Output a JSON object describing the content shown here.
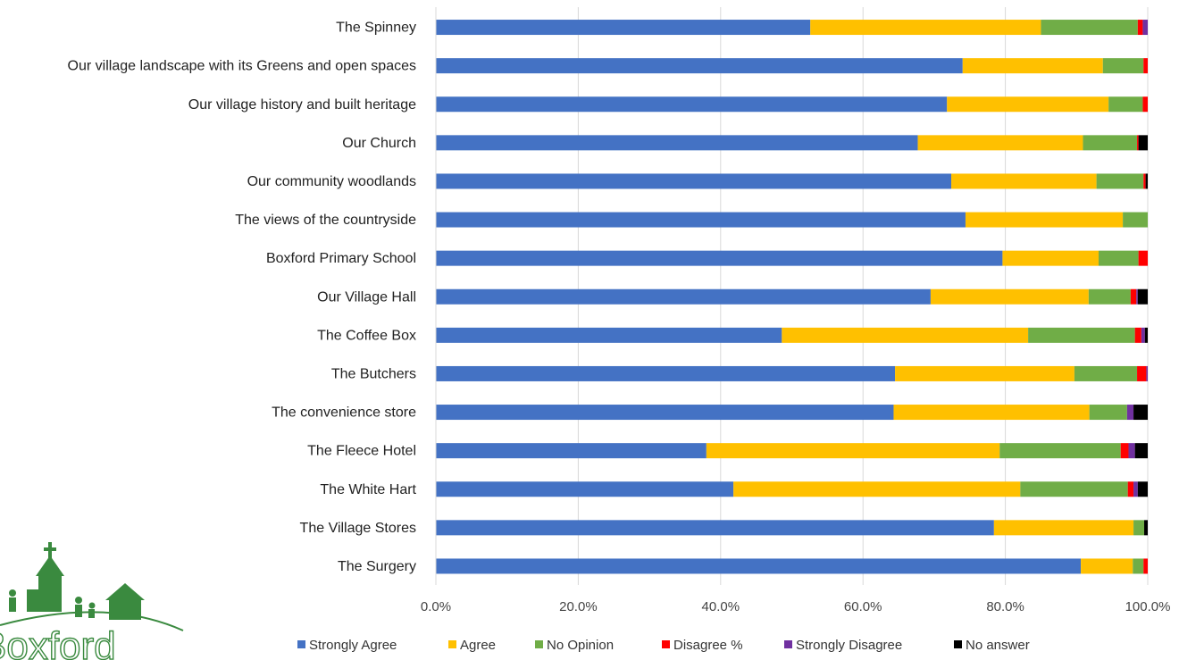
{
  "chart_data": {
    "type": "bar",
    "orientation": "horizontal",
    "stacked": true,
    "title": "",
    "xlabel": "",
    "ylabel": "",
    "xlim": [
      0,
      100
    ],
    "x_ticks": [
      "0.0%",
      "20.0%",
      "40.0%",
      "60.0%",
      "80.0%",
      "100.0%"
    ],
    "grid": true,
    "legend_position": "bottom",
    "categories": [
      "The Spinney",
      "Our village landscape with its Greens and open spaces",
      "Our village history and built heritage",
      "Our Church",
      "Our community woodlands",
      "The views of the countryside",
      "Boxford Primary School",
      "Our Village Hall",
      "The Coffee Box",
      "The Butchers",
      "The convenience store",
      "The Fleece Hotel",
      "The White Hart",
      "The Village Stores",
      "The Surgery"
    ],
    "series": [
      {
        "name": "Strongly Agree",
        "color": "#4472C4",
        "values": [
          52.6,
          74.0,
          71.8,
          67.7,
          72.4,
          74.4,
          79.6,
          69.5,
          48.6,
          64.5,
          64.3,
          38.0,
          41.8,
          78.4,
          90.6
        ]
      },
      {
        "name": "Agree",
        "color": "#FFC000",
        "values": [
          32.4,
          19.7,
          22.7,
          23.2,
          20.4,
          22.1,
          13.5,
          22.2,
          34.6,
          25.2,
          27.5,
          41.2,
          40.3,
          19.6,
          7.3
        ]
      },
      {
        "name": "No Opinion",
        "color": "#70AD47",
        "values": [
          13.6,
          5.7,
          4.8,
          7.6,
          6.6,
          3.5,
          5.6,
          5.9,
          15.0,
          8.8,
          5.3,
          17.0,
          15.1,
          1.5,
          1.5
        ]
      },
      {
        "name": "Disagree %",
        "color": "#FF0000",
        "values": [
          0.7,
          0.6,
          0.7,
          0.2,
          0.3,
          0.0,
          1.3,
          0.8,
          0.9,
          1.3,
          0.0,
          1.1,
          0.8,
          0.0,
          0.6
        ]
      },
      {
        "name": "Strongly Disagree",
        "color": "#7030A0",
        "values": [
          0.7,
          0.0,
          0.0,
          0.0,
          0.0,
          0.0,
          0.0,
          0.2,
          0.5,
          0.2,
          0.9,
          0.9,
          0.6,
          0.0,
          0.0
        ]
      },
      {
        "name": "No answer",
        "color": "#000000",
        "values": [
          0.0,
          0.0,
          0.0,
          1.3,
          0.3,
          0.0,
          0.0,
          1.4,
          0.4,
          0.0,
          2.0,
          1.8,
          1.4,
          0.5,
          0.0
        ]
      }
    ]
  },
  "logo": {
    "text": "Boxford",
    "color": "#3a8a3f"
  }
}
